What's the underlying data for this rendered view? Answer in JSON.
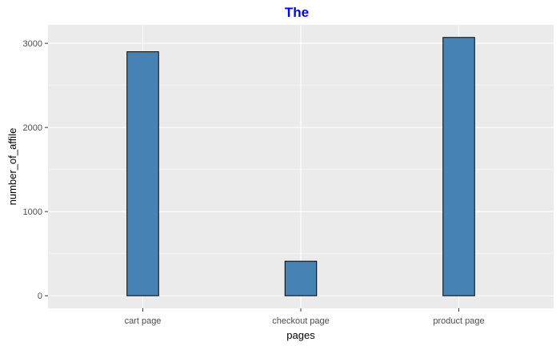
{
  "chart_data": {
    "type": "bar",
    "title": "The",
    "xlabel": "pages",
    "ylabel": "number_of_affile",
    "categories": [
      "cart page",
      "checkout page",
      "product page"
    ],
    "values": [
      2900,
      410,
      3070
    ],
    "ylim": [
      -150,
      3220
    ],
    "y_ticks": [
      0,
      1000,
      2000,
      3000
    ],
    "grid": true,
    "legend": "none"
  },
  "colors": {
    "title": "#0000ff",
    "bar_fill": "#4682b4",
    "bar_stroke": "#000000",
    "panel_background": "#ebebeb",
    "grid_major": "#ffffff",
    "tick_label": "#4d4d4d"
  }
}
